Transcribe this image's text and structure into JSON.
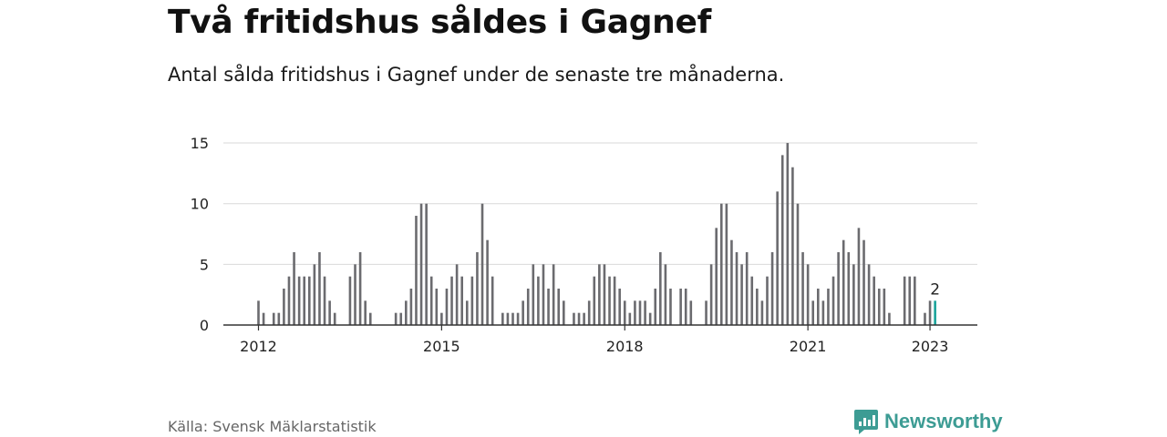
{
  "header": {
    "title": "Två fritidshus såldes i Gagnef",
    "subtitle": "Antal sålda fritidshus i Gagnef under de senaste tre månaderna."
  },
  "footer": {
    "source": "Källa: Svensk Mäklarstatistik",
    "brand": "Newsworthy",
    "brand_icon": "newsworthy-logo-icon"
  },
  "colors": {
    "bar": "#6b6b6f",
    "highlight": "#1aa39a",
    "grid": "#d9d9d9",
    "axis": "#333333",
    "brand": "#3d9c94"
  },
  "chart_data": {
    "type": "bar",
    "title": "",
    "xlabel": "",
    "ylabel": "",
    "x_tick_labels": [
      "2012",
      "2015",
      "2018",
      "2021",
      "2023"
    ],
    "y_ticks": [
      0,
      5,
      10,
      15
    ],
    "ylim": [
      0,
      16
    ],
    "grid": true,
    "start": "2012-01",
    "frequency": "monthly",
    "values": [
      2,
      1,
      null,
      1,
      1,
      3,
      4,
      6,
      4,
      4,
      4,
      5,
      6,
      4,
      2,
      1,
      null,
      null,
      4,
      5,
      6,
      2,
      1,
      null,
      null,
      null,
      null,
      1,
      1,
      2,
      3,
      9,
      10,
      10,
      4,
      3,
      1,
      3,
      4,
      5,
      4,
      2,
      4,
      6,
      10,
      7,
      4,
      null,
      1,
      1,
      1,
      1,
      2,
      3,
      5,
      4,
      5,
      3,
      5,
      3,
      2,
      null,
      1,
      1,
      1,
      2,
      4,
      5,
      5,
      4,
      4,
      3,
      2,
      1,
      2,
      2,
      2,
      1,
      3,
      6,
      5,
      3,
      null,
      3,
      3,
      2,
      null,
      null,
      2,
      5,
      8,
      10,
      10,
      7,
      6,
      5,
      6,
      4,
      3,
      2,
      4,
      6,
      11,
      14,
      15,
      13,
      10,
      6,
      5,
      2,
      3,
      2,
      3,
      4,
      6,
      7,
      6,
      5,
      8,
      7,
      5,
      4,
      3,
      3,
      1,
      null,
      null,
      4,
      4,
      4,
      null,
      1,
      2,
      2
    ],
    "highlight_index": 133,
    "annotations": [
      {
        "index": 133,
        "text": "2"
      }
    ]
  }
}
